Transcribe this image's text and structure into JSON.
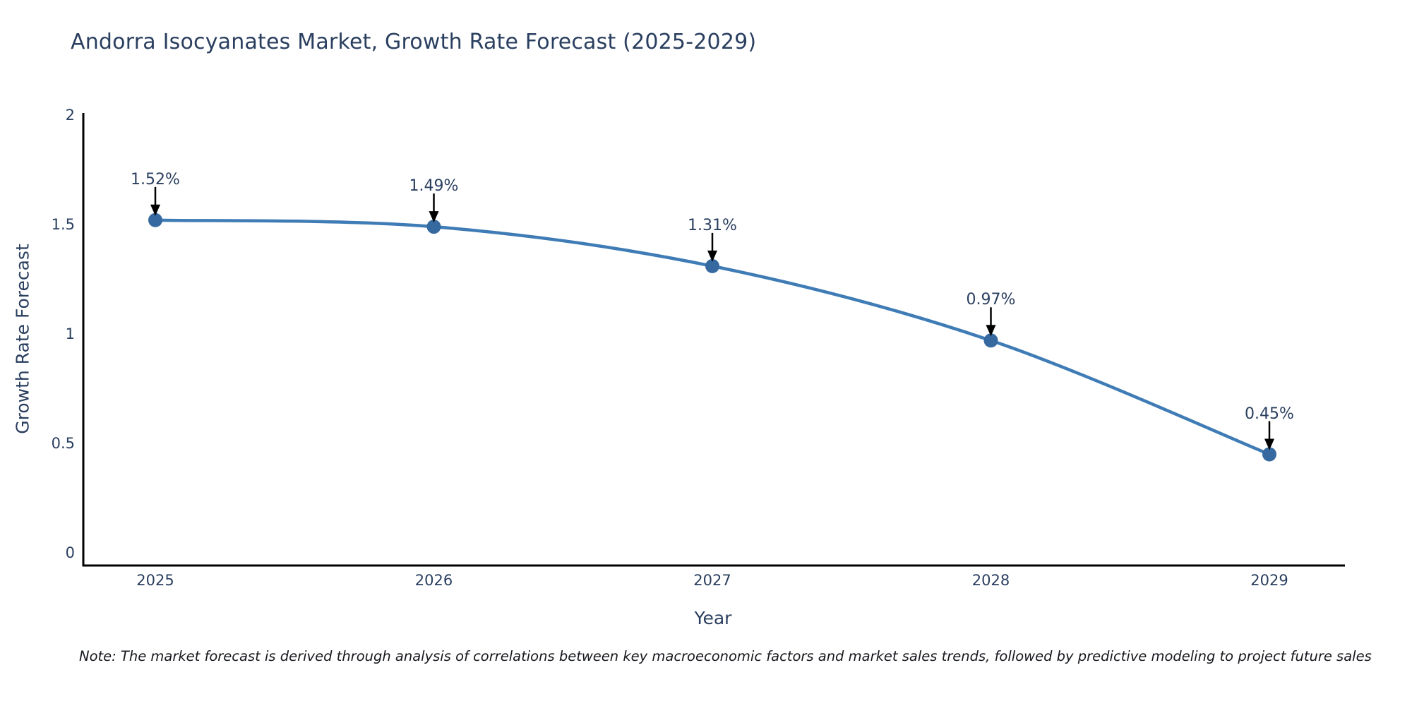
{
  "title": "Andorra Isocyanates Market, Growth Rate Forecast (2025-2029)",
  "note": "Note: The market forecast is derived through analysis of correlations between key macroeconomic factors and market sales trends, followed by predictive modeling to project future sales",
  "colors": {
    "line": "#3f7cb6",
    "marker": "#36699f",
    "axis": "#000000",
    "text": "#2a3f5f",
    "annotation_arrow": "#000000",
    "background": "#ffffff"
  },
  "chart_data": {
    "type": "line",
    "title": "Andorra Isocyanates Market, Growth Rate Forecast (2025-2029)",
    "x": [
      2025,
      2026,
      2027,
      2028,
      2029
    ],
    "series": [
      {
        "name": "Growth Rate Forecast",
        "values": [
          1.52,
          1.49,
          1.31,
          0.97,
          0.45
        ]
      }
    ],
    "point_labels": [
      "1.52%",
      "1.49%",
      "1.31%",
      "0.97%",
      "0.45%"
    ],
    "xlabel": "Year",
    "ylabel": "Growth Rate Forecast",
    "x_ticks": [
      "2025",
      "2026",
      "2027",
      "2028",
      "2029"
    ],
    "y_ticks": [
      "0",
      "0.5",
      "1",
      "1.5",
      "2"
    ],
    "ylim": [
      0,
      2
    ],
    "grid": false,
    "legend": "none",
    "line_shape": "spline",
    "markers": true
  }
}
